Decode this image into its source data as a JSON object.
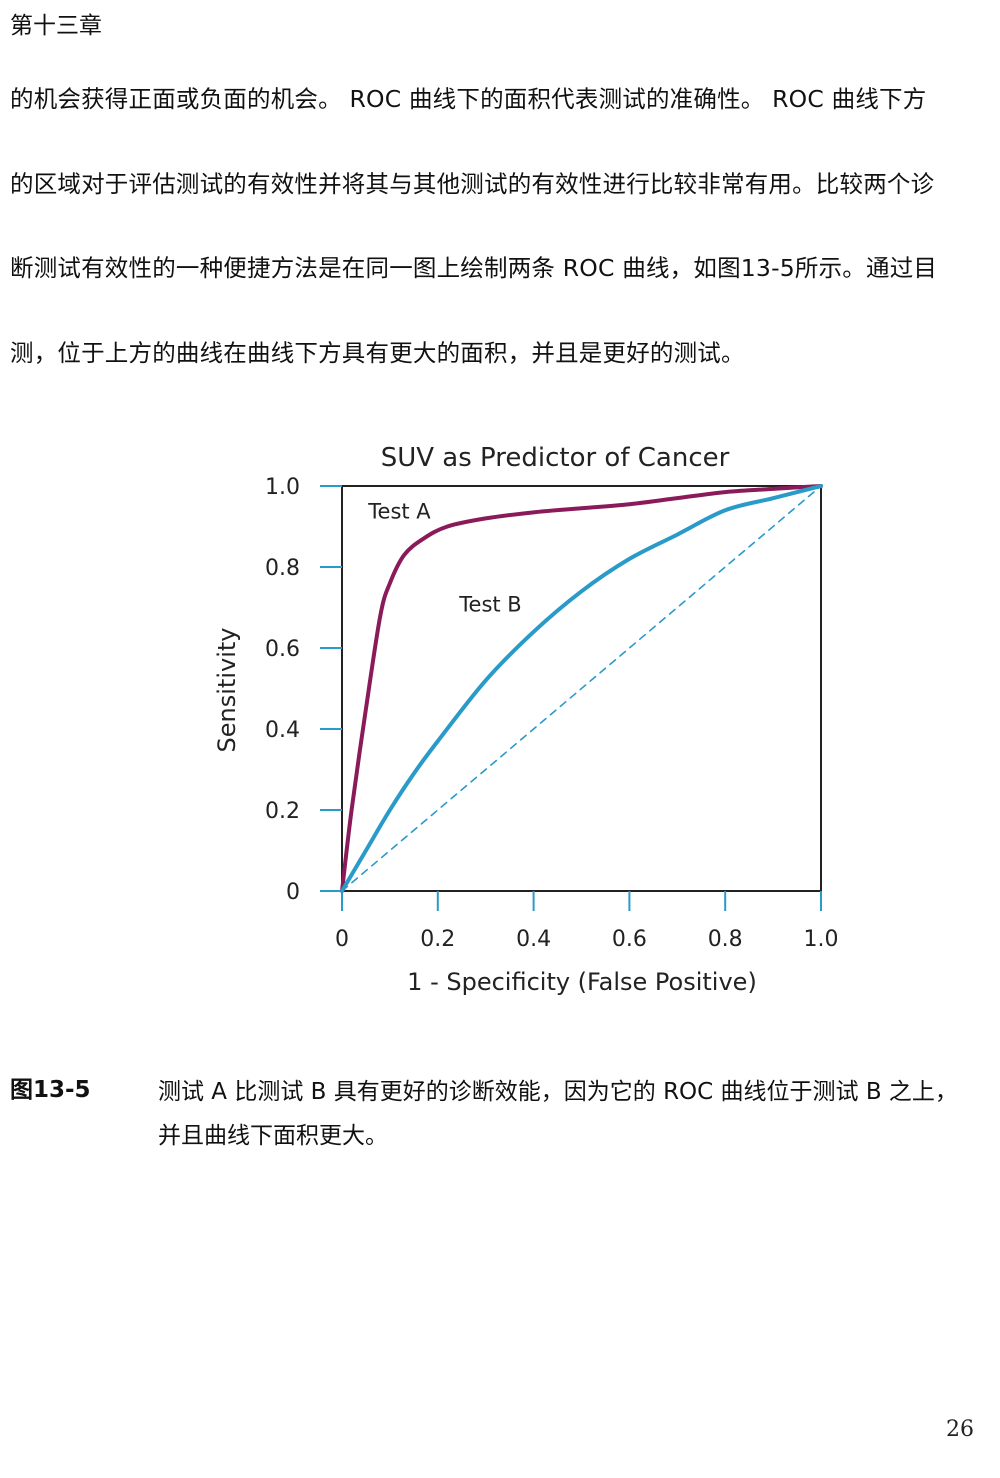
{
  "header": {
    "chapter": "第十三章"
  },
  "paragraph": {
    "lines": [
      "的机会获得正面或负面的机会。 ROC 曲线下的面积代表测试的准确性。 ROC 曲线下方",
      "的区域对于评估测试的有效性并将其与其他测试的有效性进行比较非常有用。比较两个诊",
      "断测试有效性的一种便捷方法是在同一图上绘制两条 ROC 曲线，如图13-5所示。通过目",
      "测，位于上方的曲线在曲线下方具有更大的面积，并且是更好的测试。"
    ]
  },
  "chart_data": {
    "type": "line",
    "title": "SUV as Predictor of Cancer",
    "xlabel": "1 - Specificity (False Positive)",
    "ylabel": "Sensitivity",
    "xlim": [
      0,
      1
    ],
    "ylim": [
      0,
      1
    ],
    "x_ticks": [
      "0",
      "0.2",
      "0.4",
      "0.6",
      "0.8",
      "1.0"
    ],
    "y_ticks": [
      "0",
      "0.2",
      "0.4",
      "0.6",
      "0.8",
      "1.0"
    ],
    "grid": false,
    "legend": "none",
    "series": [
      {
        "name": "Test A",
        "color": "#8b1a5a",
        "style": "solid",
        "x": [
          0,
          0.02,
          0.05,
          0.08,
          0.1,
          0.13,
          0.17,
          0.22,
          0.3,
          0.4,
          0.5,
          0.6,
          0.7,
          0.8,
          0.9,
          1.0
        ],
        "y": [
          0,
          0.2,
          0.45,
          0.68,
          0.76,
          0.83,
          0.87,
          0.9,
          0.92,
          0.935,
          0.945,
          0.955,
          0.97,
          0.985,
          0.993,
          1.0
        ]
      },
      {
        "name": "Test B",
        "color": "#2a9ac9",
        "style": "solid",
        "x": [
          0,
          0.05,
          0.1,
          0.15,
          0.2,
          0.3,
          0.4,
          0.5,
          0.6,
          0.7,
          0.8,
          0.9,
          1.0
        ],
        "y": [
          0,
          0.1,
          0.2,
          0.29,
          0.37,
          0.52,
          0.64,
          0.74,
          0.82,
          0.88,
          0.94,
          0.97,
          1.0
        ]
      },
      {
        "name": "",
        "color": "#2a9ac9",
        "style": "dashed",
        "x": [
          0,
          1
        ],
        "y": [
          0,
          1
        ]
      }
    ],
    "annotations": [
      {
        "text": "Test A",
        "x": 0.12,
        "y": 0.92
      },
      {
        "text": "Test B",
        "x": 0.31,
        "y": 0.69
      }
    ]
  },
  "caption": {
    "label": "图13-5",
    "text": "测试 A 比测试 B 具有更好的诊断效能，因为它的 ROC 曲线位于测试 B 之上，并且曲线下面积更大。"
  },
  "page_number": "26"
}
